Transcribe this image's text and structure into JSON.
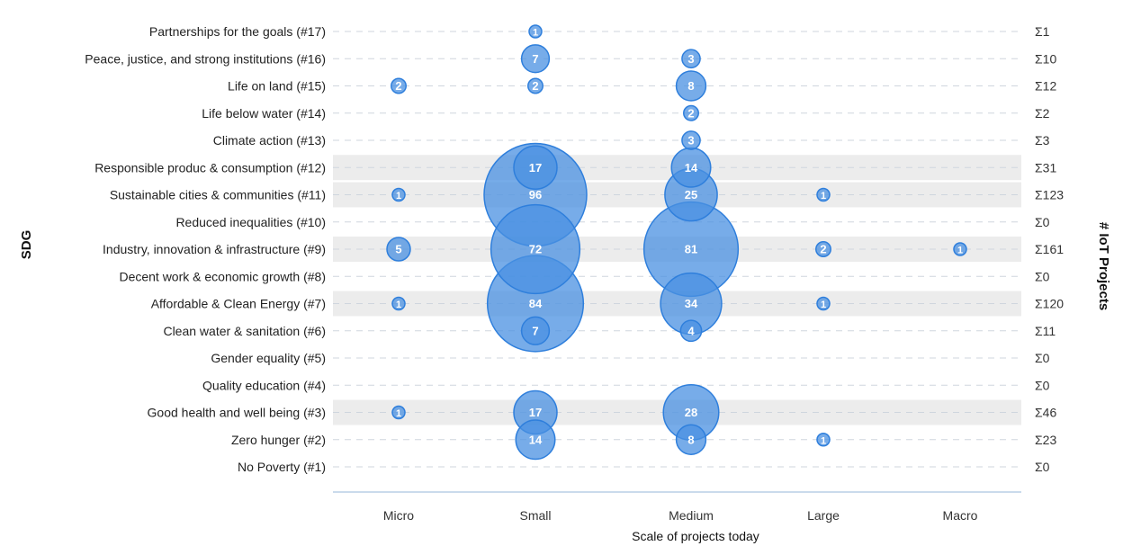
{
  "chart_data": {
    "type": "bubble",
    "xlabel": "Scale of projects today",
    "ylabel": "SDG",
    "y2label": "# IoT Projects",
    "x_categories": [
      "Micro",
      "Small",
      "Medium",
      "Large",
      "Macro"
    ],
    "rows": [
      {
        "label": "Partnerships for the goals (#17)",
        "sum": "Σ1",
        "highlight": false,
        "values": [
          0,
          1,
          0,
          0,
          0
        ]
      },
      {
        "label": "Peace, justice, and strong institutions (#16)",
        "sum": "Σ10",
        "highlight": false,
        "values": [
          0,
          7,
          3,
          0,
          0
        ]
      },
      {
        "label": "Life on land (#15)",
        "sum": "Σ12",
        "highlight": false,
        "values": [
          2,
          2,
          8,
          0,
          0
        ]
      },
      {
        "label": "Life below water (#14)",
        "sum": "Σ2",
        "highlight": false,
        "values": [
          0,
          0,
          2,
          0,
          0
        ]
      },
      {
        "label": "Climate action (#13)",
        "sum": "Σ3",
        "highlight": false,
        "values": [
          0,
          0,
          3,
          0,
          0
        ]
      },
      {
        "label": "Responsible produc & consumption (#12)",
        "sum": "Σ31",
        "highlight": true,
        "values": [
          0,
          17,
          14,
          0,
          0
        ]
      },
      {
        "label": "Sustainable cities & communities (#11)",
        "sum": "Σ123",
        "highlight": true,
        "values": [
          1,
          96,
          25,
          1,
          0
        ]
      },
      {
        "label": "Reduced inequalities (#10)",
        "sum": "Σ0",
        "highlight": false,
        "values": [
          0,
          0,
          0,
          0,
          0
        ]
      },
      {
        "label": "Industry, innovation & infrastructure (#9)",
        "sum": "Σ161",
        "highlight": true,
        "values": [
          5,
          72,
          81,
          2,
          1
        ]
      },
      {
        "label": "Decent work & economic growth (#8)",
        "sum": "Σ0",
        "highlight": false,
        "values": [
          0,
          0,
          0,
          0,
          0
        ]
      },
      {
        "label": "Affordable & Clean Energy (#7)",
        "sum": "Σ120",
        "highlight": true,
        "values": [
          1,
          84,
          34,
          1,
          0
        ]
      },
      {
        "label": "Clean water & sanitation (#6)",
        "sum": "Σ11",
        "highlight": false,
        "values": [
          0,
          7,
          4,
          0,
          0
        ]
      },
      {
        "label": "Gender equality (#5)",
        "sum": "Σ0",
        "highlight": false,
        "values": [
          0,
          0,
          0,
          0,
          0
        ]
      },
      {
        "label": "Quality education (#4)",
        "sum": "Σ0",
        "highlight": false,
        "values": [
          0,
          0,
          0,
          0,
          0
        ]
      },
      {
        "label": "Good health and well being (#3)",
        "sum": "Σ46",
        "highlight": true,
        "values": [
          1,
          17,
          28,
          0,
          0
        ]
      },
      {
        "label": "Zero hunger (#2)",
        "sum": "Σ23",
        "highlight": false,
        "values": [
          0,
          14,
          8,
          1,
          0
        ]
      },
      {
        "label": "No Poverty (#1)",
        "sum": "Σ0",
        "highlight": false,
        "values": [
          0,
          0,
          0,
          0,
          0
        ]
      }
    ],
    "colors": {
      "bubble_fill": "#4a90e2",
      "bubble_stroke": "#2f7fdc",
      "highlight_band": "#ececec",
      "gridline": "#cfd6de",
      "axis": "#b9cfe6"
    }
  }
}
